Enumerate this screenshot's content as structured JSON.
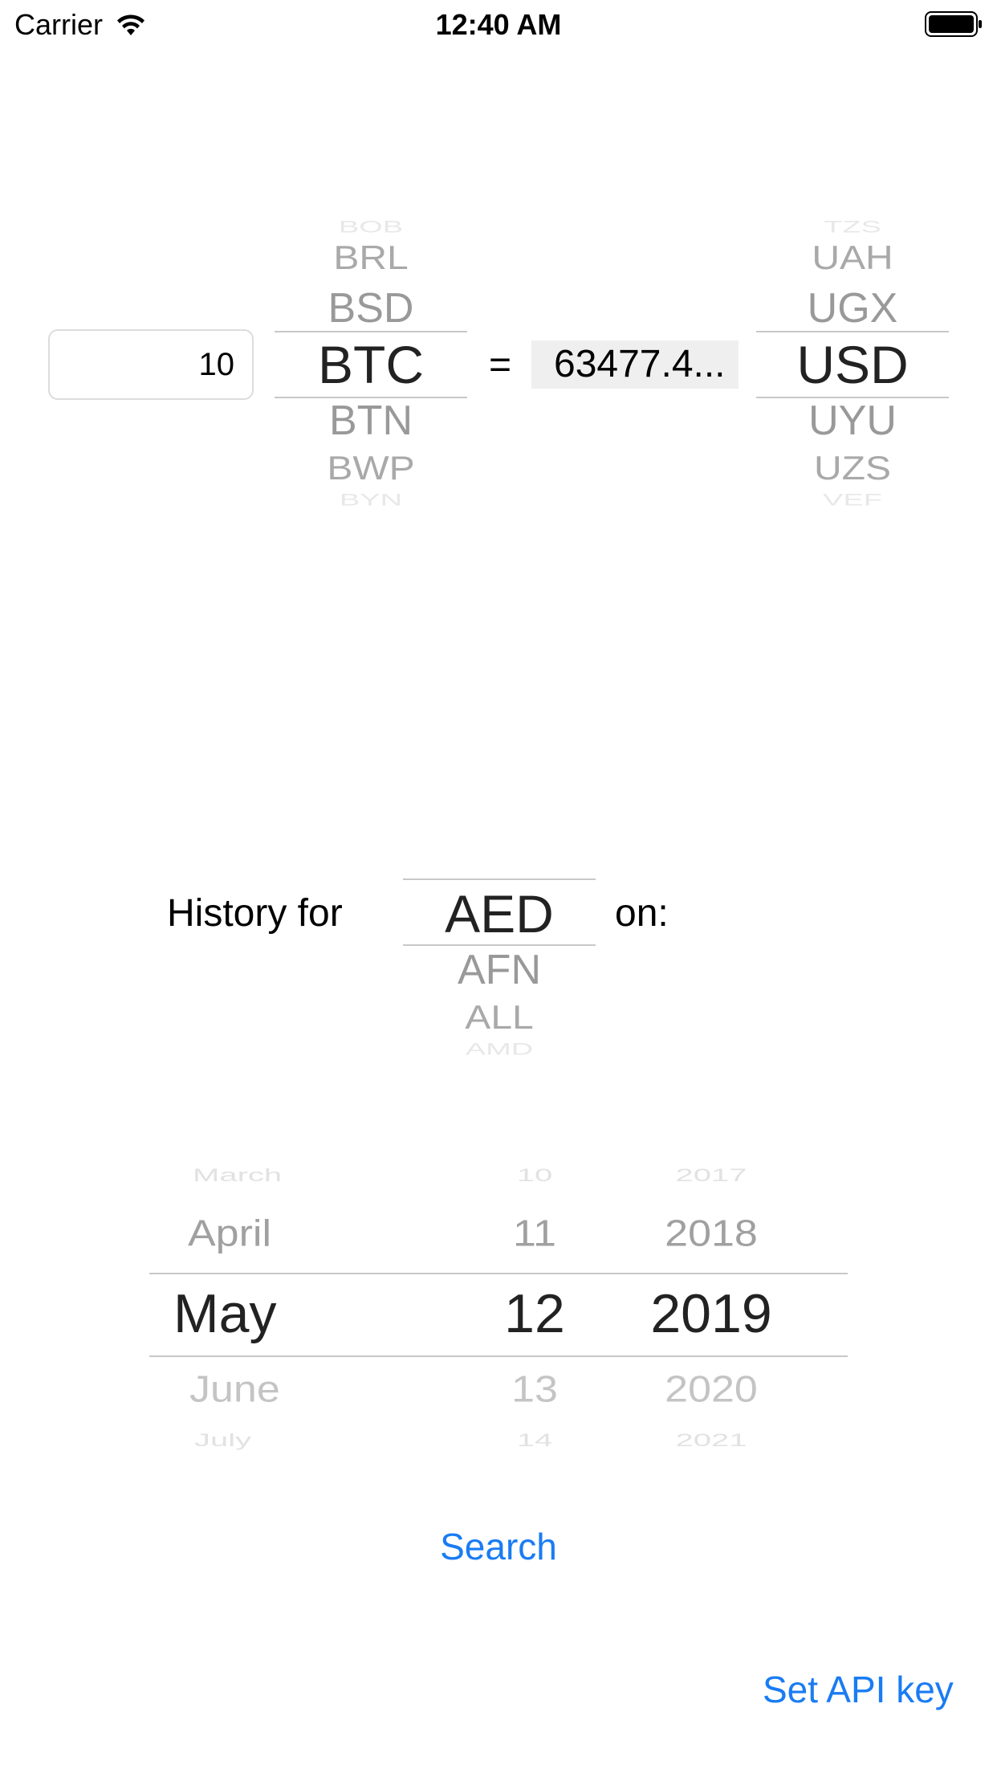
{
  "status_bar": {
    "carrier": "Carrier",
    "time": "12:40 AM",
    "icons": [
      "wifi-icon",
      "battery-icon"
    ]
  },
  "converter": {
    "amount_value": "10",
    "equals": "=",
    "result": "63477.4...",
    "from_picker": {
      "above": [
        "BOB",
        "BRL",
        "BSD"
      ],
      "selected": "BTC",
      "below": [
        "BTN",
        "BWP",
        "BYN"
      ]
    },
    "to_picker": {
      "above": [
        "TZS",
        "UAH",
        "UGX"
      ],
      "selected": "USD",
      "below": [
        "UYU",
        "UZS",
        "VEF"
      ]
    }
  },
  "history": {
    "label": "History for",
    "on_label": "on:",
    "currency_picker": {
      "selected": "AED",
      "below": [
        "AFN",
        "ALL",
        "AMD"
      ]
    },
    "date_picker": {
      "months": {
        "above": [
          "March",
          "April"
        ],
        "selected": "May",
        "below": [
          "June",
          "July"
        ]
      },
      "days": {
        "above": [
          "10",
          "11"
        ],
        "selected": "12",
        "below": [
          "13",
          "14"
        ]
      },
      "years": {
        "above": [
          "2017",
          "2018"
        ],
        "selected": "2019",
        "below": [
          "2020",
          "2021"
        ]
      }
    }
  },
  "actions": {
    "search": "Search",
    "set_api_key": "Set API key"
  },
  "colors": {
    "link": "#1a7cf3",
    "selected_text": "#222222",
    "faded_text": "#9a9a9a",
    "result_background": "#efefef"
  }
}
